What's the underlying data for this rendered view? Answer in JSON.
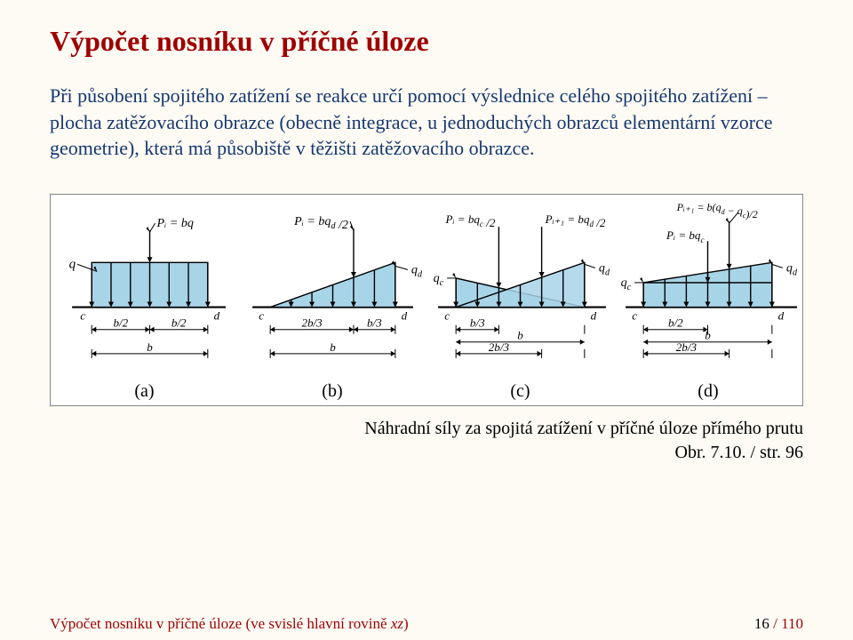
{
  "title": "Výpočet nosníku v příčné úloze",
  "body": "Při působení spojitého zatížení se reakce určí pomocí výslednice celého spojitého zatížení – plocha zatěžovacího obrazce (obecně integrace, u jednoduchých obrazců elementární vzorce geometrie), která má působiště v těžišti zatěžovacího obrazce.",
  "figure": {
    "labels": {
      "a": "(a)",
      "b": "(b)",
      "c": "(c)",
      "d": "(d)"
    },
    "caption_line1": "Náhradní síly za spojitá zatížení v příčné úloze přímého prutu",
    "caption_line2": "Obr. 7.10. / str. 96",
    "panels": {
      "a": {
        "q": "q",
        "Pi": "Pᵢ = bq",
        "c": "c",
        "d": "d",
        "b2a": "b/2",
        "b2b": "b/2",
        "b": "b"
      },
      "b": {
        "Pi": "Pᵢ = bq_d /2",
        "qd": "q_d",
        "c": "c",
        "d": "d",
        "t1": "2b/3",
        "t2": "b/3",
        "b": "b"
      },
      "c": {
        "Pi": "Pᵢ = bq_c /2",
        "Pi1": "Pᵢ₊₁ = bq_d /2",
        "qc": "q_c",
        "qd": "q_d",
        "c": "c",
        "d": "d",
        "t1": "b/3",
        "b": "b",
        "t2": "2b/3"
      },
      "d": {
        "Pi": "Pᵢ = bq_c",
        "Pi1": "Pᵢ₊₁ = b(q_d − q_c)/2",
        "qc": "q_c",
        "qd": "q_d",
        "c": "c",
        "d": "d",
        "t1": "b/2",
        "b": "b",
        "t2": "2b/3"
      }
    },
    "colors": {
      "fill": "#a8d4e8",
      "stroke": "#000000",
      "dim_stroke": "#000000",
      "text": "#000000"
    },
    "stroke_width": 1.4,
    "arrow_scale": 4
  },
  "footer": {
    "left_plain": "Výpočet nosníku v příčné úloze (ve svislé hlavní rovině ",
    "left_ital": "xz",
    "left_close": ")",
    "page_current": "16",
    "page_sep": " / ",
    "page_total": "110"
  }
}
